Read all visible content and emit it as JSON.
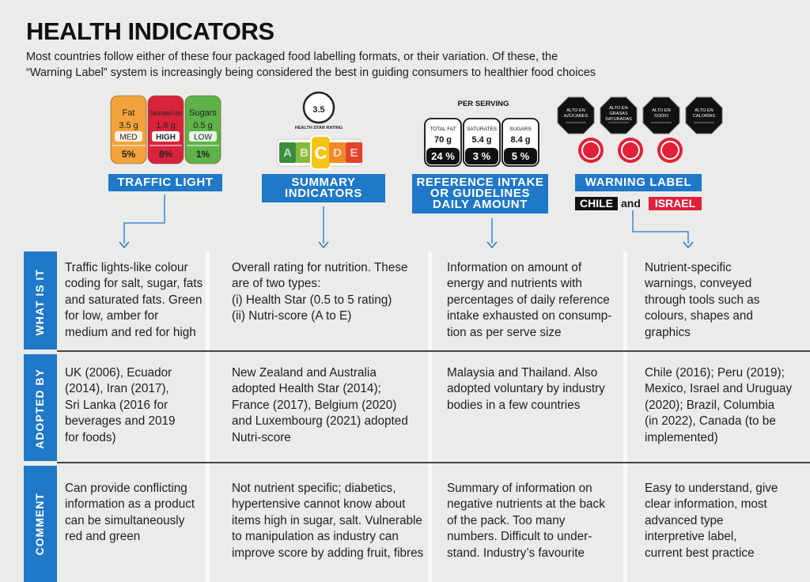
{
  "header": {
    "title": "HEALTH INDICATORS",
    "subtitle": [
      "Most countries follow either of these four packaged food labelling formats, or their variation. Of these, the",
      "“Warning Label” system is increasingly being considered the best in guiding consumers to healthier food choices"
    ]
  },
  "formats": [
    {
      "label": [
        "TRAFFIC LIGHT"
      ],
      "icon": {
        "panels": [
          {
            "name": "Fat",
            "amount": "3.5 g",
            "level": "MED",
            "percent": "5%"
          },
          {
            "name": "Saturated Fats",
            "amount": "1.6 g",
            "level": "HIGH",
            "percent": "8%"
          },
          {
            "name": "Sugars",
            "amount": "0.5 g",
            "level": "LOW",
            "percent": "1%"
          }
        ]
      }
    },
    {
      "label": [
        "SUMMARY",
        "INDICATORS"
      ],
      "icon": {
        "stars": "3.5",
        "star_caption": "HEALTH STAR RATING",
        "grades": [
          "A",
          "B",
          "C",
          "D",
          "E"
        ]
      }
    },
    {
      "label": [
        "REFERENCE INTAKE",
        "OR GUIDELINES",
        "DAILY AMOUNT"
      ],
      "icon": {
        "heading": "PER SERVING",
        "panels": [
          {
            "name": "TOTAL FAT",
            "amount": "70 g",
            "percent": "24 %"
          },
          {
            "name": "SATURATES",
            "amount": "5.4 g",
            "percent": "3 %"
          },
          {
            "name": "SUGARS",
            "amount": "8.4 g",
            "percent": "5 %"
          }
        ]
      }
    },
    {
      "label": [
        "WARNING LABEL"
      ],
      "countries": [
        "CHILE",
        "and",
        "ISRAEL"
      ],
      "icon": {
        "octagons": [
          [
            "ALTO EN",
            "AZÚCARES"
          ],
          [
            "ALTO EN",
            "GRASAS",
            "SATURADAS"
          ],
          [
            "ALTO EN",
            "SODIO"
          ],
          [
            "ALTO EN",
            "CALORÍAS"
          ]
        ]
      }
    }
  ],
  "table": {
    "row_labels": [
      "WHAT IS IT",
      "ADOPTED BY",
      "COMMENT"
    ],
    "rows": [
      [
        [
          "Traffic lights-like colour",
          "coding for salt, sugar, fats",
          "and saturated fats. Green",
          "for low, amber for",
          "medium and red for high"
        ],
        [
          "Overall rating for nutrition. These",
          "are of two types:",
          "(i)  Health Star  (0.5 to 5 rating)",
          "(ii) Nutri-score (A to E)"
        ],
        [
          "Information on amount of",
          "energy and nutrients with",
          "percentages of daily reference",
          "intake exhausted on consump-",
          "tion as per serve size"
        ],
        [
          "Nutrient-specific",
          "warnings, conveyed",
          "through tools such as",
          "colours, shapes and",
          "graphics"
        ]
      ],
      [
        [
          "UK (2006), Ecuador",
          "(2014), Iran (2017),",
          "Sri Lanka (2016 for",
          "beverages and 2019",
          "for foods)"
        ],
        [
          "New Zealand and Australia",
          "adopted Health Star (2014);",
          "France (2017), Belgium (2020)",
          "and Luxembourg (2021) adopted",
          "Nutri-score"
        ],
        [
          "Malaysia and Thailand. Also",
          "adopted voluntary by industry",
          "bodies in a few countries"
        ],
        [
          "Chile (2016); Peru (2019);",
          "Mexico, Israel and Uruguay",
          "(2020); Brazil, Columbia",
          "(in 2022), Canada (to be",
          "implemented)"
        ]
      ],
      [
        [
          "Can provide conflicting",
          "information as a product",
          "can be simultaneously",
          "red and green"
        ],
        [
          "Not nutrient specific; diabetics,",
          "hypertensive cannot know about",
          "items high in sugar, salt. Vulnerable",
          "to manipulation as industry can",
          "improve score by adding fruit, fibres"
        ],
        [
          "Summary of information on",
          "negative nutrients at the back",
          "of the pack. Too many",
          "numbers. Difficult to under-",
          "stand. Industry’s favourite"
        ],
        [
          "Easy to understand, give",
          "clear information, most",
          "advanced type",
          "interpretive label,",
          "current best practice"
        ]
      ]
    ]
  }
}
